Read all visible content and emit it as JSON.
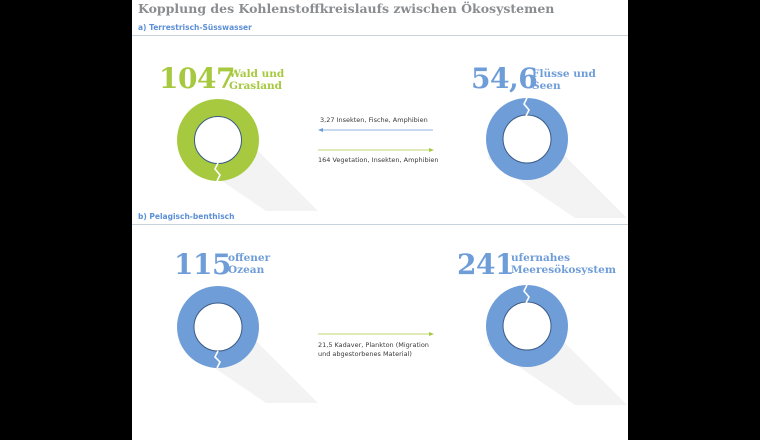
{
  "title": "Kopplung des Kohlenstoffkreislaufs zwischen Ökosystemen",
  "colors": {
    "green": "#a7c93f",
    "blue": "#6f9dd8",
    "arrow_blue": "#6f9dd8",
    "arrow_green": "#a7c93f"
  },
  "sections": [
    {
      "label": "a) Terrestrisch-Süsswasser",
      "left": {
        "value": "1047",
        "name_line1": "Wald und",
        "name_line2": "Grasland"
      },
      "right": {
        "value": "54,6",
        "name_line1": "Flüsse und",
        "name_line2": "Seen"
      },
      "flows": [
        {
          "label": "3,27 Insekten, Fische, Amphibien",
          "direction": "left"
        },
        {
          "label": "164 Vegetation, Insekten, Amphibien",
          "direction": "right"
        }
      ]
    },
    {
      "label": "b) Pelagisch-benthisch",
      "left": {
        "value": "115",
        "name_line1": "offener",
        "name_line2": "Ozean"
      },
      "right": {
        "value": "241",
        "name_line1": "ufernahes",
        "name_line2": "Meeresökosystem"
      },
      "flows": [
        {
          "label_line1": "21,5 Kadaver, Plankton (Migration",
          "label_line2": "und abgestorbenes Material)",
          "direction": "right"
        }
      ]
    }
  ]
}
